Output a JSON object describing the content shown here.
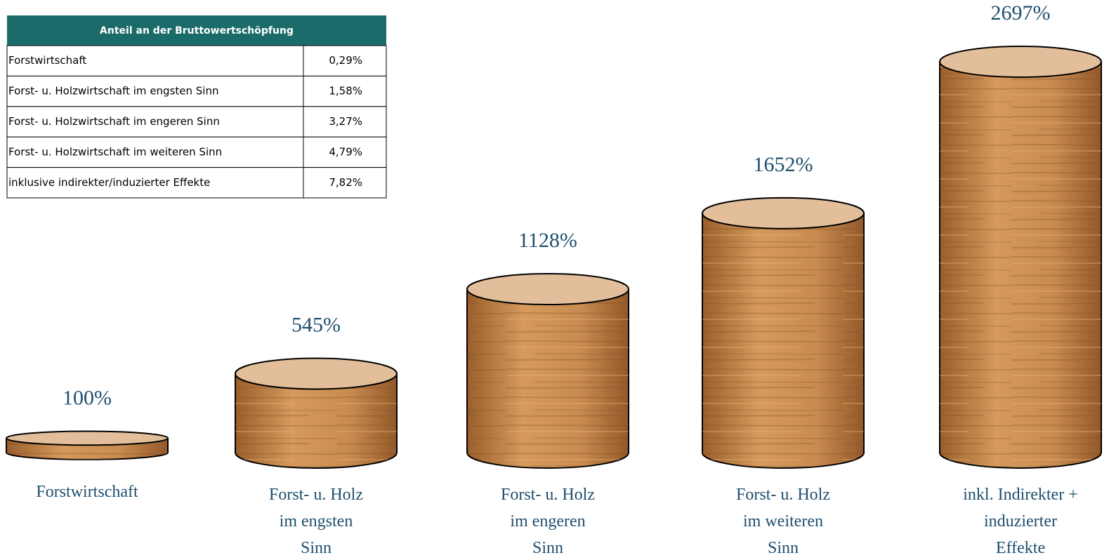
{
  "table": {
    "title": "Anteil an der Bruttowertschöpfung",
    "rows": [
      [
        "Forstwirtschaft",
        "0,29%"
      ],
      [
        "Forst- u. Holzwirtschaft im engsten Sinn",
        "1,58%"
      ],
      [
        "Forst- u. Holzwirtschaft im engeren Sinn",
        "3,27%"
      ],
      [
        "Forst- u. Holzwirtschaft im weiteren Sinn",
        "4,79%"
      ],
      [
        "inklusive indirekter/induzierter Effekte",
        "7,82%"
      ]
    ]
  },
  "chart_data": {
    "type": "cylinder",
    "categories": [
      [
        "Forstwirtschaft"
      ],
      [
        "Forst- u. Holz",
        "im engsten",
        "Sinn"
      ],
      [
        "Forst- u. Holz",
        "im engeren",
        "Sinn"
      ],
      [
        "Forst- u. Holz",
        "im weiteren",
        "Sinn"
      ],
      [
        "inkl. Indirekter +",
        "induzierter",
        "Effekte"
      ]
    ],
    "values": [
      100,
      545,
      1128,
      1652,
      2697
    ],
    "value_labels": [
      "100%",
      "545%",
      "1128%",
      "1652%",
      "2697%"
    ],
    "color": "#c68a4e"
  }
}
